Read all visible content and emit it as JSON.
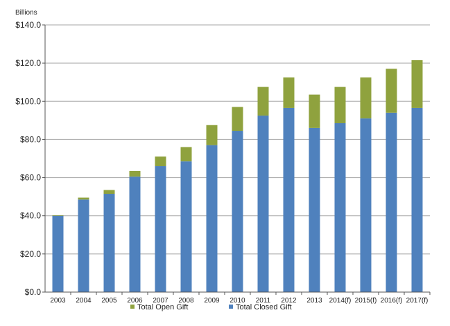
{
  "chart_data": {
    "type": "bar",
    "stacked": true,
    "unit_label": "Billions",
    "categories": [
      "2003",
      "2004",
      "2005",
      "2006",
      "2007",
      "2008",
      "2009",
      "2010",
      "2011",
      "2012",
      "2013",
      "2014(f)",
      "2015(f)",
      "2016(f)",
      "2017(f)"
    ],
    "series": [
      {
        "name": "Total Closed Gift",
        "color": "#4f81bd",
        "values": [
          40.0,
          48.5,
          51.5,
          60.5,
          66.0,
          68.5,
          77.0,
          84.5,
          92.5,
          96.5,
          86.0,
          88.5,
          91.0,
          94.0,
          96.5
        ]
      },
      {
        "name": "Total Open Gift",
        "color": "#8fa23e",
        "values": [
          0.3,
          1.0,
          2.0,
          3.0,
          5.0,
          7.5,
          10.5,
          12.5,
          15.0,
          16.0,
          17.5,
          19.0,
          21.5,
          23.0,
          25.0
        ]
      }
    ],
    "ylim": [
      0,
      140
    ],
    "yticks": [
      0,
      20,
      40,
      60,
      80,
      100,
      120,
      140
    ],
    "ytick_labels": [
      "$0.0",
      "$20.0",
      "$40.0",
      "$60.0",
      "$80.0",
      "$100.0",
      "$120.0",
      "$140.0"
    ],
    "grid": true,
    "legend_position": "bottom"
  }
}
